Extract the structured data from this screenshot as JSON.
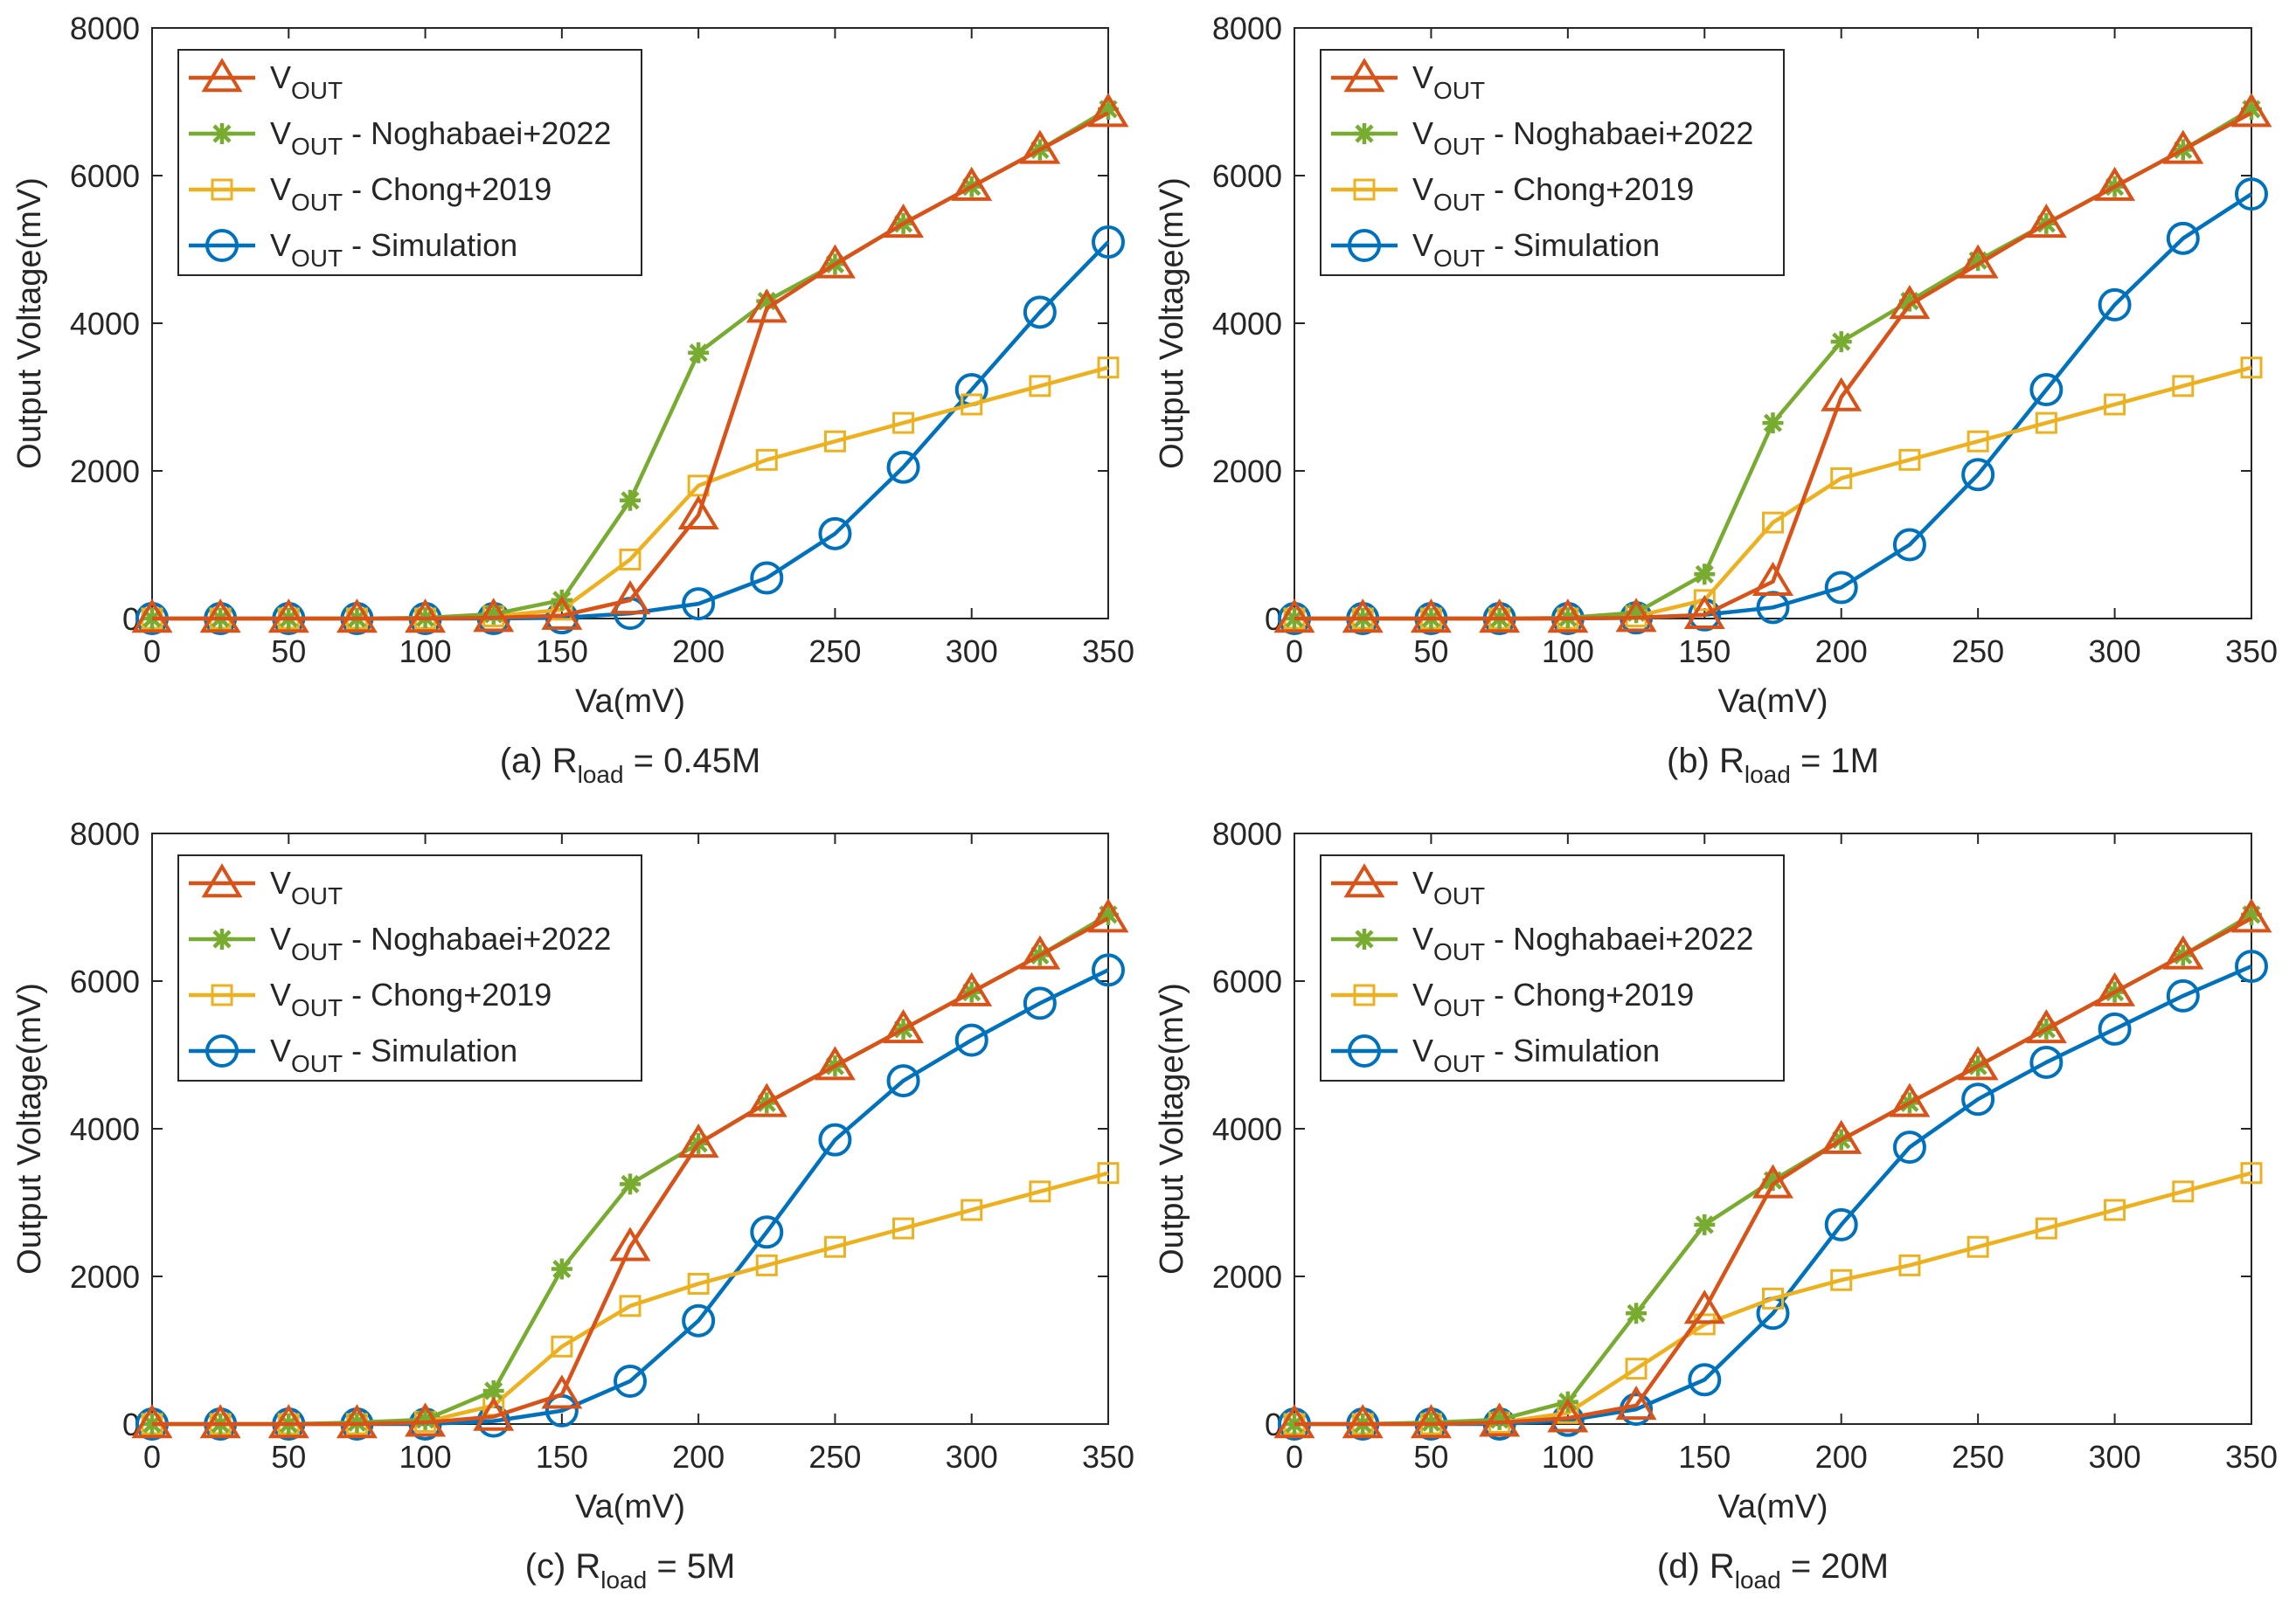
{
  "chart_data": [
    {
      "type": "line",
      "caption": {
        "prefix": "(a) R",
        "sub": "load",
        "suffix": " = 0.45M"
      },
      "xlabel": "Va(mV)",
      "ylabel": "Output Voltage(mV)",
      "xlim": [
        0,
        350
      ],
      "ylim": [
        0,
        8000
      ],
      "xticks": [
        0,
        50,
        100,
        150,
        200,
        250,
        300,
        350
      ],
      "yticks": [
        0,
        2000,
        4000,
        6000,
        8000
      ],
      "legend_position": "top-left",
      "x": [
        0,
        25,
        50,
        75,
        100,
        125,
        150,
        175,
        200,
        225,
        250,
        275,
        300,
        325,
        350
      ],
      "series": [
        {
          "name": "V",
          "sub": "OUT",
          "suffix": "",
          "color": "#D95319",
          "marker": "triangle",
          "values": [
            0,
            0,
            0,
            0,
            0,
            10,
            40,
            250,
            1400,
            4200,
            4800,
            5350,
            5850,
            6350,
            6850
          ]
        },
        {
          "name": "V",
          "sub": "OUT",
          "suffix": " - Noghabaei+2022",
          "color": "#77AC30",
          "marker": "asterisk",
          "values": [
            0,
            0,
            0,
            0,
            10,
            60,
            250,
            1600,
            3600,
            4300,
            4800,
            5350,
            5850,
            6350,
            6900
          ]
        },
        {
          "name": "V",
          "sub": "OUT",
          "suffix": " - Chong+2019",
          "color": "#EDB120",
          "marker": "square",
          "values": [
            0,
            0,
            0,
            0,
            0,
            30,
            120,
            800,
            1800,
            2150,
            2400,
            2650,
            2900,
            3150,
            3400
          ]
        },
        {
          "name": "V",
          "sub": "OUT",
          "suffix": " - Simulation",
          "color": "#0072BD",
          "marker": "circle",
          "values": [
            0,
            0,
            0,
            0,
            0,
            0,
            10,
            70,
            200,
            550,
            1150,
            2050,
            3100,
            4150,
            5100
          ]
        }
      ]
    },
    {
      "type": "line",
      "caption": {
        "prefix": "(b) R",
        "sub": "load",
        "suffix": " = 1M"
      },
      "xlabel": "Va(mV)",
      "ylabel": "Output Voltage(mV)",
      "xlim": [
        0,
        350
      ],
      "ylim": [
        0,
        8000
      ],
      "xticks": [
        0,
        50,
        100,
        150,
        200,
        250,
        300,
        350
      ],
      "yticks": [
        0,
        2000,
        4000,
        6000,
        8000
      ],
      "legend_position": "top-left",
      "x": [
        0,
        25,
        50,
        75,
        100,
        125,
        150,
        175,
        200,
        225,
        250,
        275,
        300,
        325,
        350
      ],
      "series": [
        {
          "name": "V",
          "sub": "OUT",
          "suffix": "",
          "color": "#D95319",
          "marker": "triangle",
          "values": [
            0,
            0,
            0,
            0,
            0,
            10,
            50,
            500,
            3000,
            4250,
            4800,
            5350,
            5850,
            6350,
            6850
          ]
        },
        {
          "name": "V",
          "sub": "OUT",
          "suffix": " - Noghabaei+2022",
          "color": "#77AC30",
          "marker": "asterisk",
          "values": [
            0,
            0,
            0,
            0,
            10,
            80,
            600,
            2650,
            3750,
            4300,
            4850,
            5350,
            5850,
            6350,
            6900
          ]
        },
        {
          "name": "V",
          "sub": "OUT",
          "suffix": " - Chong+2019",
          "color": "#EDB120",
          "marker": "square",
          "values": [
            0,
            0,
            0,
            0,
            0,
            30,
            250,
            1300,
            1900,
            2150,
            2400,
            2650,
            2900,
            3150,
            3400
          ]
        },
        {
          "name": "V",
          "sub": "OUT",
          "suffix": " - Simulation",
          "color": "#0072BD",
          "marker": "circle",
          "values": [
            0,
            0,
            0,
            0,
            0,
            10,
            50,
            150,
            420,
            1000,
            1950,
            3100,
            4250,
            5150,
            5750
          ]
        }
      ]
    },
    {
      "type": "line",
      "caption": {
        "prefix": "(c) R",
        "sub": "load",
        "suffix": " = 5M"
      },
      "xlabel": "Va(mV)",
      "ylabel": "Output Voltage(mV)",
      "xlim": [
        0,
        350
      ],
      "ylim": [
        0,
        8000
      ],
      "xticks": [
        0,
        50,
        100,
        150,
        200,
        250,
        300,
        350
      ],
      "yticks": [
        0,
        2000,
        4000,
        6000,
        8000
      ],
      "legend_position": "top-left",
      "x": [
        0,
        25,
        50,
        75,
        100,
        125,
        150,
        175,
        200,
        225,
        250,
        275,
        300,
        325,
        350
      ],
      "series": [
        {
          "name": "V",
          "sub": "OUT",
          "suffix": "",
          "color": "#D95319",
          "marker": "triangle",
          "values": [
            0,
            0,
            0,
            0,
            20,
            100,
            400,
            2400,
            3800,
            4350,
            4850,
            5350,
            5850,
            6350,
            6850
          ]
        },
        {
          "name": "V",
          "sub": "OUT",
          "suffix": " - Noghabaei+2022",
          "color": "#77AC30",
          "marker": "asterisk",
          "values": [
            0,
            0,
            0,
            20,
            60,
            450,
            2100,
            3250,
            3800,
            4350,
            4850,
            5350,
            5850,
            6350,
            6900
          ]
        },
        {
          "name": "V",
          "sub": "OUT",
          "suffix": " - Chong+2019",
          "color": "#EDB120",
          "marker": "square",
          "values": [
            0,
            0,
            0,
            0,
            30,
            250,
            1050,
            1600,
            1900,
            2150,
            2400,
            2650,
            2900,
            3150,
            3400
          ]
        },
        {
          "name": "V",
          "sub": "OUT",
          "suffix": " - Simulation",
          "color": "#0072BD",
          "marker": "circle",
          "values": [
            0,
            0,
            0,
            0,
            0,
            40,
            180,
            580,
            1400,
            2600,
            3850,
            4650,
            5200,
            5700,
            6150
          ]
        }
      ]
    },
    {
      "type": "line",
      "caption": {
        "prefix": "(d) R",
        "sub": "load",
        "suffix": " = 20M"
      },
      "xlabel": "Va(mV)",
      "ylabel": "Output Voltage(mV)",
      "xlim": [
        0,
        350
      ],
      "ylim": [
        0,
        8000
      ],
      "xticks": [
        0,
        50,
        100,
        150,
        200,
        250,
        300,
        350
      ],
      "yticks": [
        0,
        2000,
        4000,
        6000,
        8000
      ],
      "legend_position": "top-left",
      "x": [
        0,
        25,
        50,
        75,
        100,
        125,
        150,
        175,
        200,
        225,
        250,
        275,
        300,
        325,
        350
      ],
      "series": [
        {
          "name": "V",
          "sub": "OUT",
          "suffix": "",
          "color": "#D95319",
          "marker": "triangle",
          "values": [
            0,
            0,
            0,
            20,
            80,
            250,
            1550,
            3250,
            3850,
            4350,
            4850,
            5350,
            5850,
            6350,
            6850
          ]
        },
        {
          "name": "V",
          "sub": "OUT",
          "suffix": " - Noghabaei+2022",
          "color": "#77AC30",
          "marker": "asterisk",
          "values": [
            0,
            0,
            20,
            60,
            300,
            1500,
            2700,
            3300,
            3850,
            4350,
            4850,
            5350,
            5850,
            6350,
            6900
          ]
        },
        {
          "name": "V",
          "sub": "OUT",
          "suffix": " - Chong+2019",
          "color": "#EDB120",
          "marker": "square",
          "values": [
            0,
            0,
            0,
            20,
            150,
            750,
            1350,
            1700,
            1950,
            2150,
            2400,
            2650,
            2900,
            3150,
            3400
          ]
        },
        {
          "name": "V",
          "sub": "OUT",
          "suffix": " - Simulation",
          "color": "#0072BD",
          "marker": "circle",
          "values": [
            0,
            0,
            0,
            0,
            50,
            200,
            600,
            1500,
            2700,
            3750,
            4400,
            4900,
            5350,
            5800,
            6200
          ]
        }
      ]
    }
  ]
}
